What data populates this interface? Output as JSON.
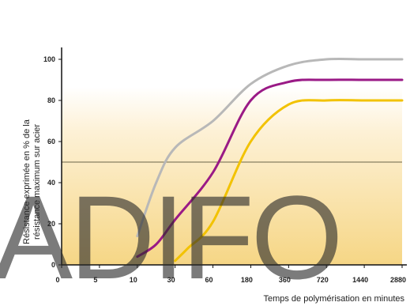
{
  "chart_data": {
    "type": "line",
    "title": "",
    "xlabel": "Temps de polymérisation en minutes",
    "ylabel": "Résistance exprimée en % de la résistance maximum sur acier",
    "ylabel_lines": [
      "Résistance exprimée en % de la",
      "résistance maximum sur acier"
    ],
    "x_ticks": [
      "0",
      "5",
      "10",
      "30",
      "60",
      "180",
      "360",
      "720",
      "1440",
      "2880"
    ],
    "y_ticks": [
      0,
      20,
      40,
      60,
      80,
      100
    ],
    "ylim": [
      0,
      100
    ],
    "x_scale": "categorical-log-like (equally spaced tick categories)",
    "reference_line": 50,
    "grid": false,
    "series": [
      {
        "color": "#b8b8b8",
        "points": [
          [
            10,
            14
          ],
          [
            20,
            40
          ],
          [
            30,
            57
          ],
          [
            60,
            70
          ],
          [
            180,
            88
          ],
          [
            360,
            97
          ],
          [
            720,
            100
          ],
          [
            1440,
            100
          ],
          [
            2880,
            100
          ]
        ]
      },
      {
        "color": "#9a1a86",
        "points": [
          [
            10,
            4
          ],
          [
            20,
            10
          ],
          [
            30,
            22
          ],
          [
            60,
            45
          ],
          [
            180,
            80
          ],
          [
            360,
            89
          ],
          [
            720,
            90
          ],
          [
            1440,
            90
          ],
          [
            2880,
            90
          ]
        ]
      },
      {
        "color": "#f2c200",
        "points": [
          [
            30,
            2
          ],
          [
            40,
            8
          ],
          [
            60,
            21
          ],
          [
            180,
            60
          ],
          [
            360,
            78
          ],
          [
            720,
            80
          ],
          [
            1440,
            80
          ],
          [
            2880,
            80
          ]
        ]
      }
    ]
  },
  "watermark_text": "ADIFO",
  "colors": {
    "background_top": "#ffffff",
    "background_bottom": "#f6d685"
  }
}
